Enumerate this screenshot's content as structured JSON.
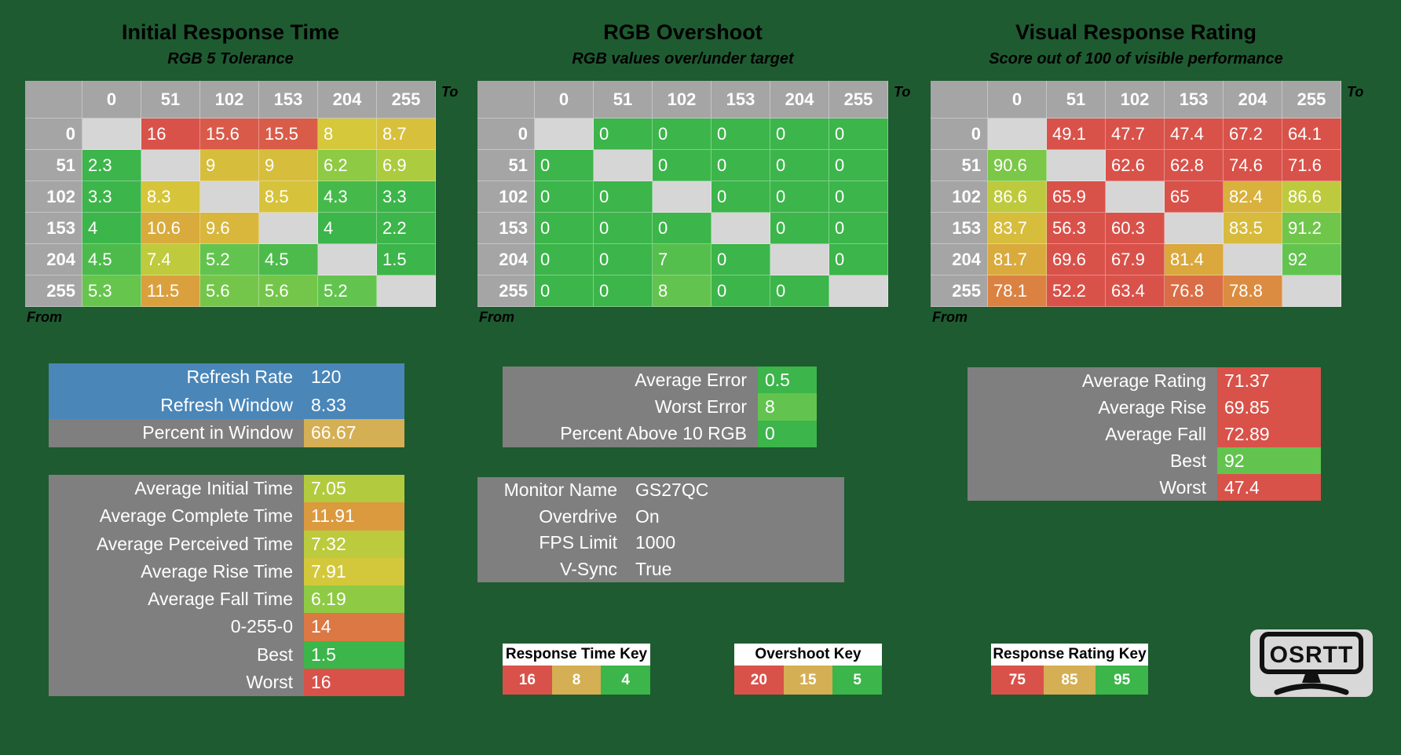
{
  "page": {
    "background": "#1E5B31"
  },
  "palette": {
    "background": "#1E5B31",
    "header_gray": "#A5A5A5",
    "diagonal_gray": "#D6D6D6",
    "panel_gray": "#7F7F7F",
    "blue": "#4A86B8",
    "gold": "#D4AF54",
    "red": "#D8524A",
    "green": "#3CB54A",
    "key_header_bg": "#FFFFFF",
    "logo_bg": "#D8D8D8"
  },
  "axis": {
    "to_label": "To",
    "from_label": "From",
    "levels": [
      "0",
      "51",
      "102",
      "153",
      "204",
      "255"
    ]
  },
  "chart_data": [
    {
      "type": "heatmap",
      "title": "Initial Response Time",
      "subtitle": "RGB 5 Tolerance",
      "x_levels": [
        0,
        51,
        102,
        153,
        204,
        255
      ],
      "y_levels": [
        0,
        51,
        102,
        153,
        204,
        255
      ],
      "x_meaning": "To",
      "y_meaning": "From",
      "scale": {
        "green": 4,
        "yellow": 8,
        "red": 16,
        "reverse": false
      },
      "rows": [
        [
          null,
          16,
          15.6,
          15.5,
          8,
          8.7
        ],
        [
          2.3,
          null,
          9,
          9,
          6.2,
          6.9
        ],
        [
          3.3,
          8.3,
          null,
          8.5,
          4.3,
          3.3
        ],
        [
          4,
          10.6,
          9.6,
          null,
          4,
          2.2
        ],
        [
          4.5,
          7.4,
          5.2,
          4.5,
          null,
          1.5
        ],
        [
          5.3,
          11.5,
          5.6,
          5.6,
          5.2,
          null
        ]
      ]
    },
    {
      "type": "heatmap",
      "title": "RGB Overshoot",
      "subtitle": "RGB values over/under target",
      "x_levels": [
        0,
        51,
        102,
        153,
        204,
        255
      ],
      "y_levels": [
        0,
        51,
        102,
        153,
        204,
        255
      ],
      "x_meaning": "To",
      "y_meaning": "From",
      "scale": {
        "green": 5,
        "yellow": 15,
        "red": 20,
        "reverse": false
      },
      "rows": [
        [
          null,
          0,
          0,
          0,
          0,
          0
        ],
        [
          0,
          null,
          0,
          0,
          0,
          0
        ],
        [
          0,
          0,
          null,
          0,
          0,
          0
        ],
        [
          0,
          0,
          0,
          null,
          0,
          0
        ],
        [
          0,
          0,
          7,
          0,
          null,
          0
        ],
        [
          0,
          0,
          8,
          0,
          0,
          null
        ]
      ]
    },
    {
      "type": "heatmap",
      "title": "Visual Response Rating",
      "subtitle": "Score out of 100 of visible performance",
      "x_levels": [
        0,
        51,
        102,
        153,
        204,
        255
      ],
      "y_levels": [
        0,
        51,
        102,
        153,
        204,
        255
      ],
      "x_meaning": "To",
      "y_meaning": "From",
      "scale": {
        "green": 95,
        "yellow": 85,
        "red": 75,
        "reverse": true
      },
      "rows": [
        [
          null,
          49.1,
          47.7,
          47.4,
          67.2,
          64.1
        ],
        [
          90.6,
          null,
          62.6,
          62.8,
          74.6,
          71.6
        ],
        [
          86.6,
          65.9,
          null,
          65,
          82.4,
          86.6
        ],
        [
          83.7,
          56.3,
          60.3,
          null,
          83.5,
          91.2
        ],
        [
          81.7,
          69.6,
          67.9,
          81.4,
          null,
          92
        ],
        [
          78.1,
          52.2,
          63.4,
          76.8,
          78.8,
          null
        ]
      ]
    }
  ],
  "panels": {
    "refresh": {
      "rows": [
        {
          "label": "Refresh Rate",
          "value": 120,
          "row_bg": "blue"
        },
        {
          "label": "Refresh Window",
          "value": 8.33,
          "row_bg": "blue"
        },
        {
          "label": "Percent in Window",
          "value": 66.67,
          "row_bg": "gray",
          "value_bg": "gold"
        }
      ]
    },
    "times": {
      "value_scale": "response_time",
      "rows": [
        {
          "label": "Average Initial Time",
          "value": 7.05
        },
        {
          "label": "Average Complete Time",
          "value": 11.91
        },
        {
          "label": "Average Perceived Time",
          "value": 7.32
        },
        {
          "label": "Average Rise Time",
          "value": 7.91
        },
        {
          "label": "Average Fall Time",
          "value": 6.19
        },
        {
          "label": "0-255-0",
          "value": 14
        },
        {
          "label": "Best",
          "value": 1.5
        },
        {
          "label": "Worst",
          "value": 16
        }
      ]
    },
    "errors": {
      "value_scale": "overshoot",
      "rows": [
        {
          "label": "Average Error",
          "value": 0.5
        },
        {
          "label": "Worst Error",
          "value": 8
        },
        {
          "label": "Percent Above 10 RGB",
          "value": 0
        }
      ]
    },
    "monitor": {
      "rows": [
        {
          "label": "Monitor Name",
          "value": "GS27QC"
        },
        {
          "label": "Overdrive",
          "value": "On"
        },
        {
          "label": "FPS Limit",
          "value": 1000
        },
        {
          "label": "V-Sync",
          "value": "True"
        }
      ]
    },
    "rating": {
      "value_scale": "rating",
      "rows": [
        {
          "label": "Average Rating",
          "value": 71.37
        },
        {
          "label": "Average Rise",
          "value": 69.85
        },
        {
          "label": "Average Fall",
          "value": 72.89
        },
        {
          "label": "Best",
          "value": 92
        },
        {
          "label": "Worst",
          "value": 47.4
        }
      ]
    }
  },
  "keys": [
    {
      "title": "Response Time Key",
      "cells": [
        {
          "value": 16,
          "color": "red"
        },
        {
          "value": 8,
          "color": "gold"
        },
        {
          "value": 4,
          "color": "green"
        }
      ]
    },
    {
      "title": "Overshoot Key",
      "cells": [
        {
          "value": 20,
          "color": "red"
        },
        {
          "value": 15,
          "color": "gold"
        },
        {
          "value": 5,
          "color": "green"
        }
      ]
    },
    {
      "title": "Response Rating Key",
      "cells": [
        {
          "value": 75,
          "color": "red"
        },
        {
          "value": 85,
          "color": "gold"
        },
        {
          "value": 95,
          "color": "green"
        }
      ]
    }
  ],
  "logo": {
    "text": "OSRTT"
  }
}
